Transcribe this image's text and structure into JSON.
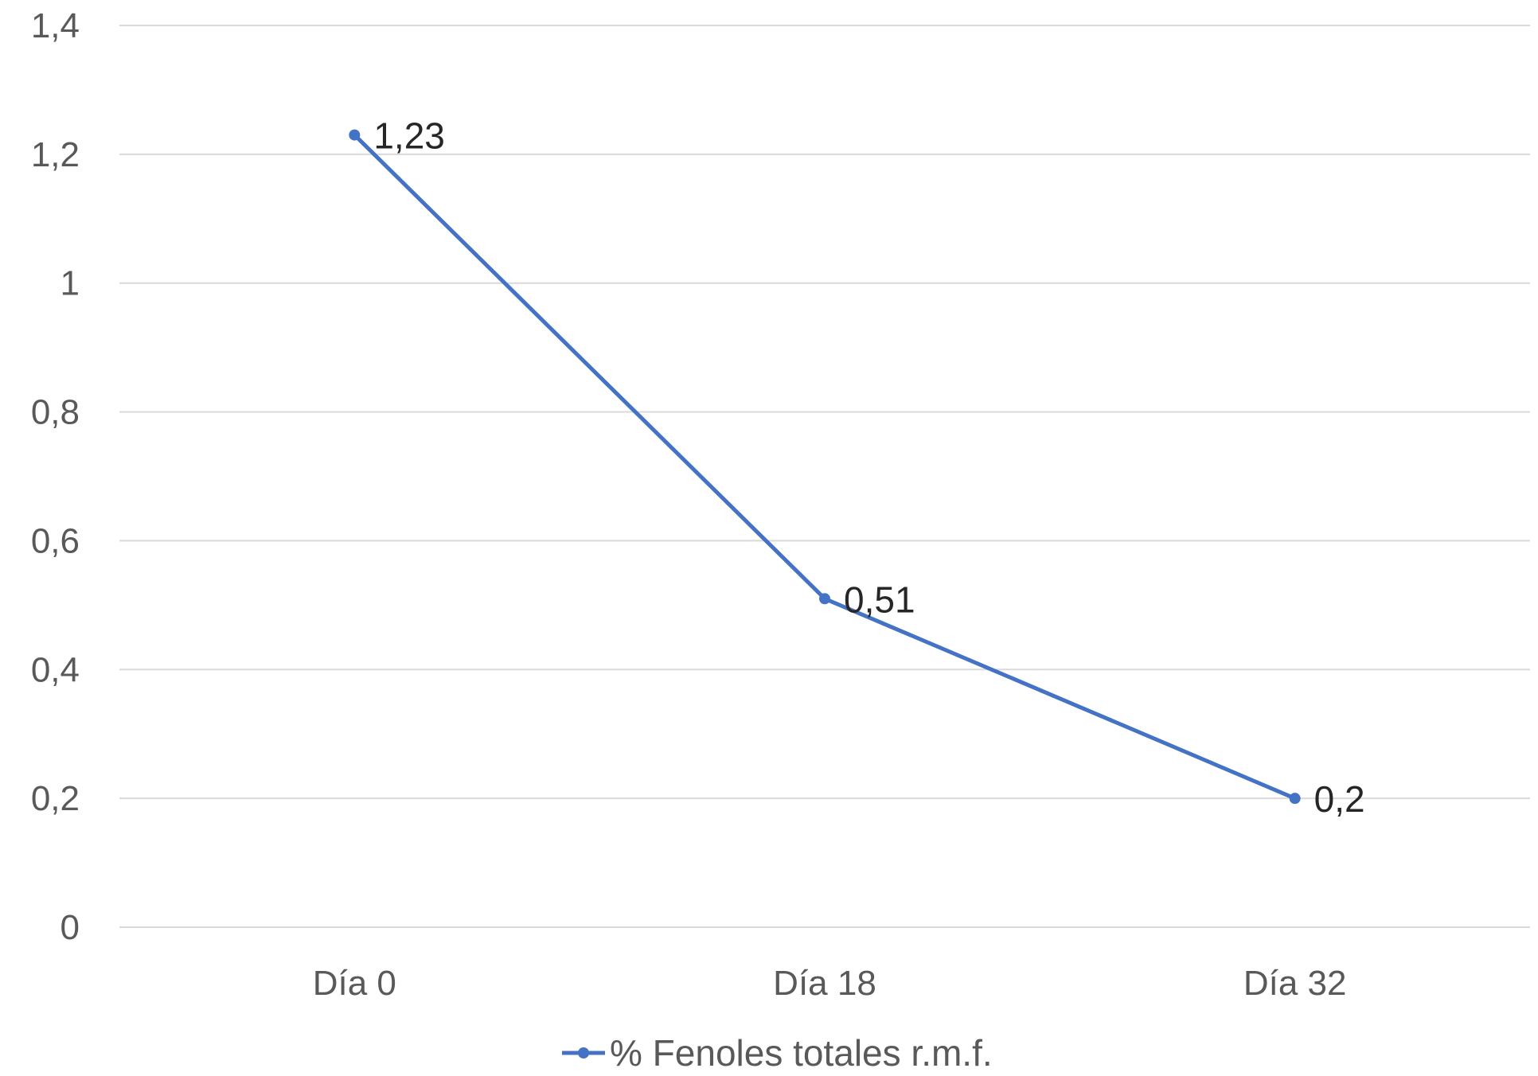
{
  "chart_data": {
    "type": "line",
    "categories": [
      "Día 0",
      "Día 18",
      "Día 32"
    ],
    "series": [
      {
        "name": "% Fenoles totales r.m.f.",
        "values": [
          1.23,
          0.51,
          0.2
        ],
        "data_labels": [
          "1,23",
          "0,51",
          "0,2"
        ],
        "color": "#4472c4"
      }
    ],
    "ylim": [
      0,
      1.4
    ],
    "y_ticks": [
      0,
      0.2,
      0.4,
      0.6,
      0.8,
      1,
      1.2,
      1.4
    ],
    "y_tick_labels": [
      "0",
      "0,2",
      "0,4",
      "0,6",
      "0,8",
      "1",
      "1,2",
      "1,4"
    ],
    "grid": true,
    "legend": "bottom",
    "title": "",
    "xlabel": "",
    "ylabel": ""
  }
}
